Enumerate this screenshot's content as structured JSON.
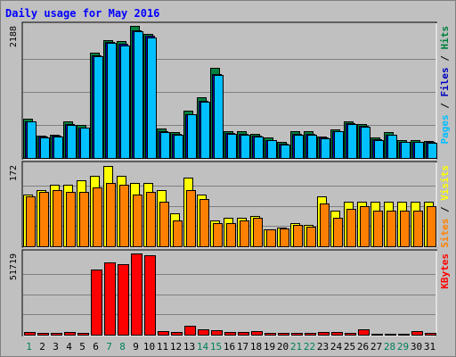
{
  "title": "Daily usage for May 2016",
  "chart_data": [
    {
      "type": "bar",
      "panel": "top",
      "categories": [
        "1",
        "2",
        "3",
        "4",
        "5",
        "6",
        "7",
        "8",
        "9",
        "10",
        "11",
        "12",
        "13",
        "14",
        "15",
        "16",
        "17",
        "18",
        "19",
        "20",
        "21",
        "22",
        "23",
        "24",
        "25",
        "26",
        "27",
        "28",
        "29",
        "30",
        "31"
      ],
      "ylabel_max": "2188",
      "ylim": [
        0,
        2188
      ],
      "side_label": {
        "parts": [
          "Pages",
          " / ",
          "Files",
          " / ",
          "Hits"
        ],
        "colors": [
          "#00c0ff",
          "#000000",
          "#0000c0",
          "#000000",
          "#008040"
        ]
      },
      "series": [
        {
          "name": "Hits",
          "color": "#008040",
          "values": [
            650,
            370,
            390,
            600,
            540,
            1740,
            1950,
            1930,
            2188,
            2060,
            490,
            430,
            780,
            1000,
            1490,
            450,
            440,
            400,
            340,
            260,
            440,
            440,
            360,
            480,
            600,
            560,
            340,
            430,
            290,
            300,
            280
          ]
        },
        {
          "name": "Files",
          "color": "#0000c0",
          "values": [
            610,
            350,
            370,
            560,
            510,
            1700,
            1920,
            1890,
            2120,
            2020,
            440,
            400,
            730,
            940,
            1390,
            410,
            400,
            370,
            300,
            230,
            400,
            400,
            340,
            450,
            570,
            530,
            310,
            390,
            270,
            270,
            260
          ]
        },
        {
          "name": "Pages",
          "color": "#00c0ff",
          "values": [
            600,
            340,
            360,
            550,
            500,
            1680,
            1900,
            1870,
            2100,
            2000,
            430,
            390,
            720,
            930,
            1380,
            400,
            390,
            360,
            290,
            220,
            390,
            390,
            330,
            440,
            560,
            520,
            300,
            380,
            260,
            260,
            250
          ]
        }
      ]
    },
    {
      "type": "bar",
      "panel": "middle",
      "categories": [
        "1",
        "2",
        "3",
        "4",
        "5",
        "6",
        "7",
        "8",
        "9",
        "10",
        "11",
        "12",
        "13",
        "14",
        "15",
        "16",
        "17",
        "18",
        "19",
        "20",
        "21",
        "22",
        "23",
        "24",
        "25",
        "26",
        "27",
        "28",
        "29",
        "30",
        "31"
      ],
      "ylabel_max": "172",
      "ylim": [
        0,
        172
      ],
      "side_label": {
        "parts": [
          "Sites",
          " / ",
          "Visits"
        ],
        "colors": [
          "#ff8000",
          "#000000",
          "#ffff00"
        ]
      },
      "series": [
        {
          "name": "Visits",
          "color": "#ffff00",
          "values": [
            110,
            120,
            130,
            130,
            140,
            150,
            170,
            150,
            135,
            135,
            120,
            70,
            145,
            110,
            55,
            60,
            60,
            65,
            35,
            40,
            50,
            45,
            105,
            75,
            95,
            95,
            95,
            95,
            95,
            95,
            95
          ]
        },
        {
          "name": "Sites",
          "color": "#ff8000",
          "values": [
            105,
            115,
            120,
            115,
            115,
            125,
            135,
            130,
            110,
            115,
            95,
            55,
            120,
            100,
            50,
            50,
            55,
            60,
            35,
            38,
            45,
            42,
            90,
            60,
            80,
            85,
            75,
            75,
            75,
            75,
            85
          ]
        }
      ]
    },
    {
      "type": "bar",
      "panel": "bottom",
      "categories": [
        "1",
        "2",
        "3",
        "4",
        "5",
        "6",
        "7",
        "8",
        "9",
        "10",
        "11",
        "12",
        "13",
        "14",
        "15",
        "16",
        "17",
        "18",
        "19",
        "20",
        "21",
        "22",
        "23",
        "24",
        "25",
        "26",
        "27",
        "28",
        "29",
        "30",
        "31"
      ],
      "ylabel_max": "51719",
      "ylim": [
        0,
        51719
      ],
      "side_label": {
        "parts": [
          "KBytes"
        ],
        "colors": [
          "#ff0000"
        ]
      },
      "series": [
        {
          "name": "KBytes",
          "color": "#ff0000",
          "values": [
            1800,
            1300,
            1300,
            1800,
            1200,
            41500,
            46000,
            45000,
            51719,
            50500,
            2000,
            1800,
            5800,
            3200,
            2800,
            1800,
            1800,
            2000,
            1300,
            1300,
            1300,
            1300,
            1800,
            1800,
            1300,
            3200,
            800,
            800,
            800,
            2200,
            1000
          ]
        }
      ]
    }
  ],
  "weekend_days": [
    "1",
    "7",
    "8",
    "14",
    "15",
    "21",
    "22",
    "28",
    "29"
  ],
  "colors": {
    "panel_bg": "#c0c0c0",
    "frame": "#808080",
    "title": "#0000ff",
    "day_normal": "#000000",
    "day_weekend": "#00805c"
  }
}
